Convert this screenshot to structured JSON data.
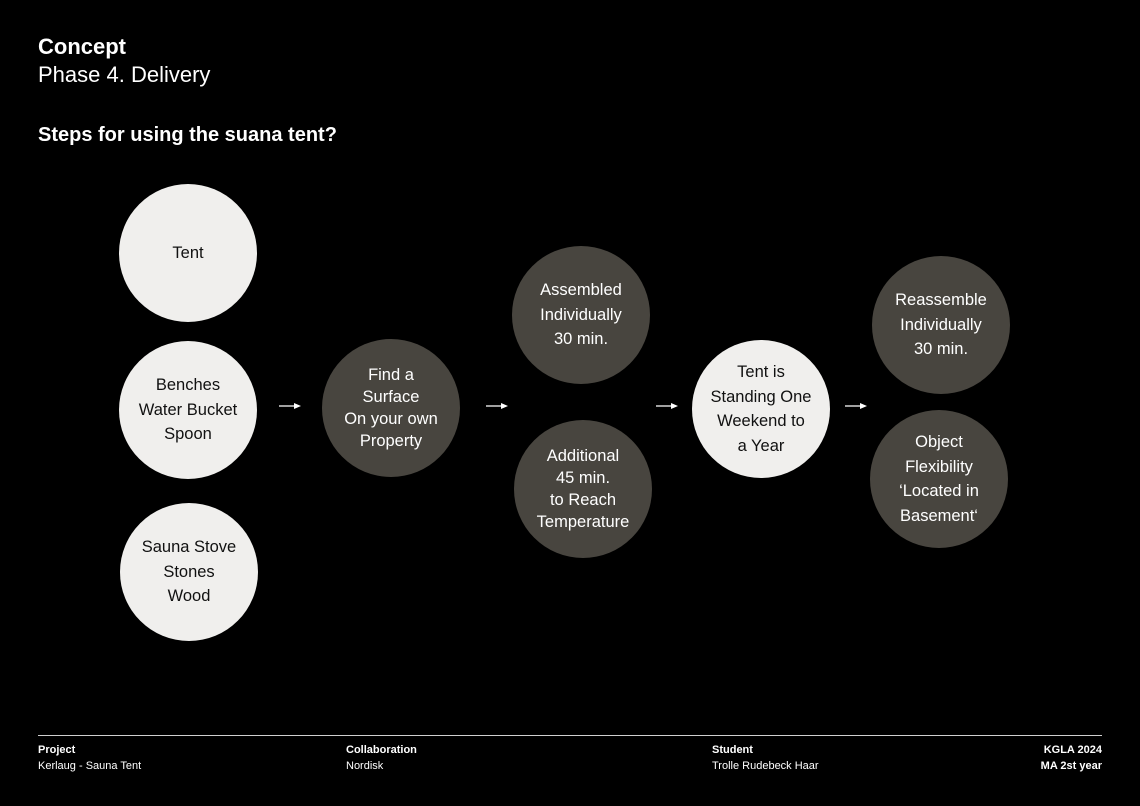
{
  "header": {
    "title": "Concept",
    "subtitle": "Phase 4. Delivery",
    "question": "Steps for using the suana tent?"
  },
  "steps": {
    "items_tent": "Tent",
    "items_equipment": "Benches\nWater Bucket\nSpoon",
    "items_stove": "Sauna Stove\nStones\nWood",
    "find_surface": "Find a\nSurface\nOn your own\nProperty",
    "assembled": "Assembled\nIndividually\n30 min.",
    "additional": "Additional\n45 min.\nto Reach\nTemperature",
    "tent_standing": "Tent is\nStanding One\nWeekend to\na Year",
    "reassemble": "Reassemble\nIndividually\n30 min.",
    "object_flexibility": "Object\nFlexibility\n‘Located in\nBasement‘"
  },
  "footer": {
    "project_label": "Project",
    "project_value": "Kerlaug - Sauna Tent",
    "collaboration_label": "Collaboration",
    "collaboration_value": "Nordisk",
    "student_label": "Student",
    "student_value": "Trolle Rudebeck Haar",
    "school": "KGLA 2024",
    "program": "MA 2st year"
  },
  "colors": {
    "background": "#000000",
    "light_circle": "#f0efed",
    "dark_circle": "#48453f",
    "text_light": "#ffffff",
    "text_dark": "#111111"
  }
}
